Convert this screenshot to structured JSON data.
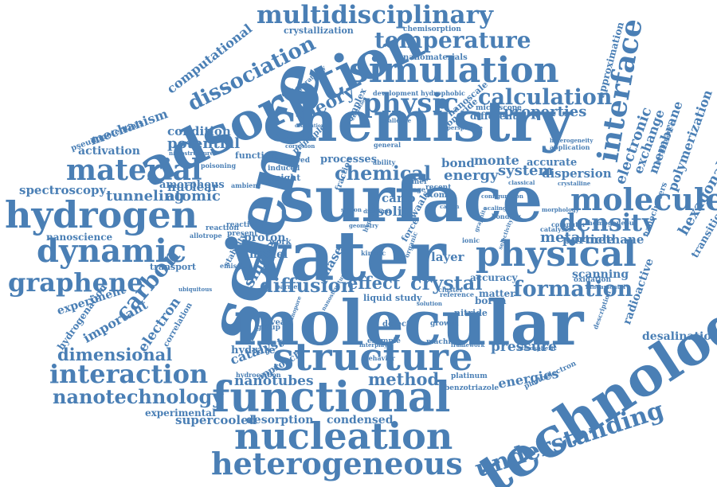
{
  "color": "#4a7fb5",
  "words": [
    "multidisciplinary",
    "crystallization",
    "chemisorption",
    "temperature",
    "simulation",
    "adsorption",
    "dissociation",
    "computational",
    "nanomaterials",
    "approximation",
    "physic",
    "calculation",
    "theory",
    "complex",
    "cooperativity",
    "development",
    "hydrophobic",
    "nanoscale",
    "monoxide",
    "microscope",
    "different",
    "interface",
    "mechanism",
    "science",
    "chemistry",
    "properties",
    "heterogeneity",
    "application",
    "electronic",
    "exchange",
    "membrane",
    "polymerization",
    "pseudopotentials",
    "activation",
    "condition",
    "potential",
    "function",
    "principle",
    "general",
    "accurate",
    "monte",
    "bond",
    "processes",
    "chemical",
    "energy",
    "system",
    "dispersion",
    "material",
    "spectroscopy",
    "amorphous",
    "nuclear",
    "tunneling",
    "atomic",
    "surface",
    "molecule",
    "hydrogen",
    "density",
    "nanoscience",
    "reactivity",
    "dynamic",
    "water",
    "metal",
    "particle",
    "methane",
    "hexagonal",
    "transition",
    "nanoclusters",
    "physical",
    "graphene",
    "carbon",
    "proton",
    "model",
    "single",
    "stability",
    "layer",
    "solid",
    "carlo",
    "crystal",
    "effect",
    "diffusion",
    "formation",
    "accuracy",
    "scanning",
    "oxidation",
    "matter",
    "liquid",
    "study",
    "molecular",
    "experiment",
    "important",
    "electron",
    "defect",
    "growth",
    "boron",
    "nitride",
    "hydrogenation",
    "correlation",
    "technology",
    "radioactive",
    "desalination",
    "dimensional",
    "catalyst",
    "approach",
    "structure",
    "pressure",
    "hydrate",
    "hydrocarbon",
    "interaction",
    "nanotubes",
    "method",
    "energies",
    "photoelectron",
    "platinum",
    "nanotechnology",
    "functional",
    "understanding",
    "benzotriazole",
    "experimental",
    "supercooled",
    "desorption",
    "condensed",
    "nucleation",
    "heterogeneous",
    "fraction",
    "force",
    "phase",
    "waals",
    "dimer",
    "range",
    "ability",
    "recent",
    "atom",
    "induced",
    "insight",
    "observed",
    "ambient",
    "allotrope",
    "transport",
    "reveal",
    "group",
    "machine",
    "example",
    "behavior",
    "computer",
    "homogeneous",
    "catalysis",
    "bonding",
    "scaling",
    "classical",
    "crystalline",
    "performance",
    "fundamental",
    "description",
    "atmospheric",
    "framework",
    "cluster",
    "reference",
    "reaction",
    "present",
    "work",
    "barrier",
    "perspective",
    "challenge",
    "excitation",
    "dissolution",
    "poisoning",
    "nanostructure",
    "emission",
    "ubiquitous",
    "nanopore",
    "hydroxyl",
    "geometry",
    "organic",
    "ionic",
    "kinetic",
    "morphology",
    "interplay",
    "nanostructured",
    "solution",
    "selectivity",
    "corrosion",
    "diamond",
    "graphite",
    "silicon",
    "configuration",
    "cation"
  ]
}
